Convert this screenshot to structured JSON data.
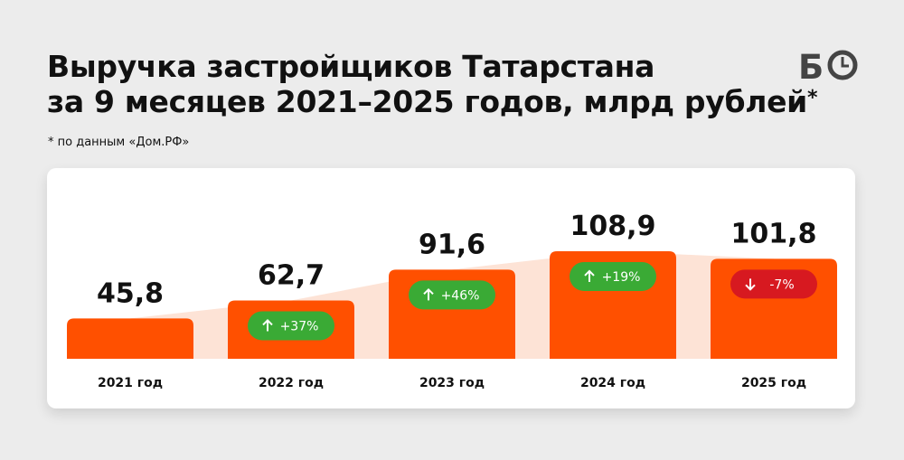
{
  "title_line1": "Выручка застройщиков Татарстана",
  "title_line2": "за 9 месяцев 2021–2025 годов, млрд рублей",
  "title_mark": "*",
  "subtitle": "* по данным «Дом.РФ»",
  "logo_text": "Б",
  "colors": {
    "bar": "#ff5000",
    "band": "#fde3d6",
    "up_badge": "#3aaa35",
    "down_badge": "#d71920"
  },
  "chart_data": {
    "type": "bar",
    "categories": [
      "2021 год",
      "2022 год",
      "2023 год",
      "2024 год",
      "2025 год"
    ],
    "values": [
      45.8,
      62.7,
      91.6,
      108.9,
      101.8
    ],
    "value_labels": [
      "45,8",
      "62,7",
      "91,6",
      "108,9",
      "101,8"
    ],
    "changes": [
      null,
      "+37%",
      "+46%",
      "+19%",
      "-7%"
    ],
    "change_direction": [
      null,
      "up",
      "up",
      "up",
      "down"
    ],
    "title": "Выручка застройщиков Татарстана за 9 месяцев 2021–2025 годов, млрд рублей",
    "xlabel": "",
    "ylabel": "",
    "grid": false,
    "legend": "none"
  }
}
